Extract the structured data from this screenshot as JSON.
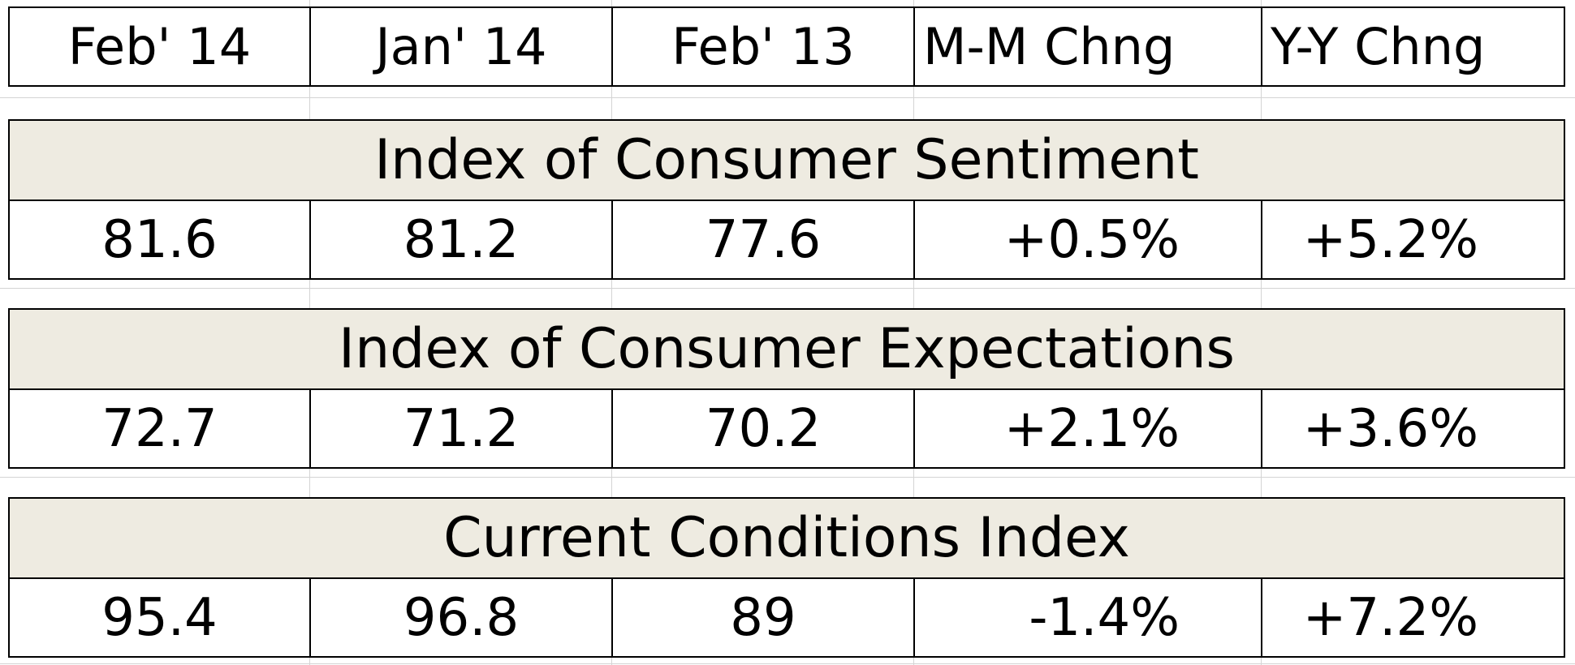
{
  "headers": [
    "Feb' 14",
    "Jan' 14",
    "Feb' 13",
    "M-M Chng",
    "Y-Y Chng"
  ],
  "sections": [
    {
      "title": "Index of Consumer Sentiment",
      "values": [
        "81.6",
        "81.2",
        "77.6",
        "+0.5%",
        "+5.2%"
      ]
    },
    {
      "title": "Index of Consumer Expectations",
      "values": [
        "72.7",
        "71.2",
        "70.2",
        "+2.1%",
        "+3.6%"
      ]
    },
    {
      "title": "Current Conditions Index",
      "values": [
        "95.4",
        "96.8",
        "89",
        "-1.4%",
        "+7.2%"
      ]
    }
  ]
}
